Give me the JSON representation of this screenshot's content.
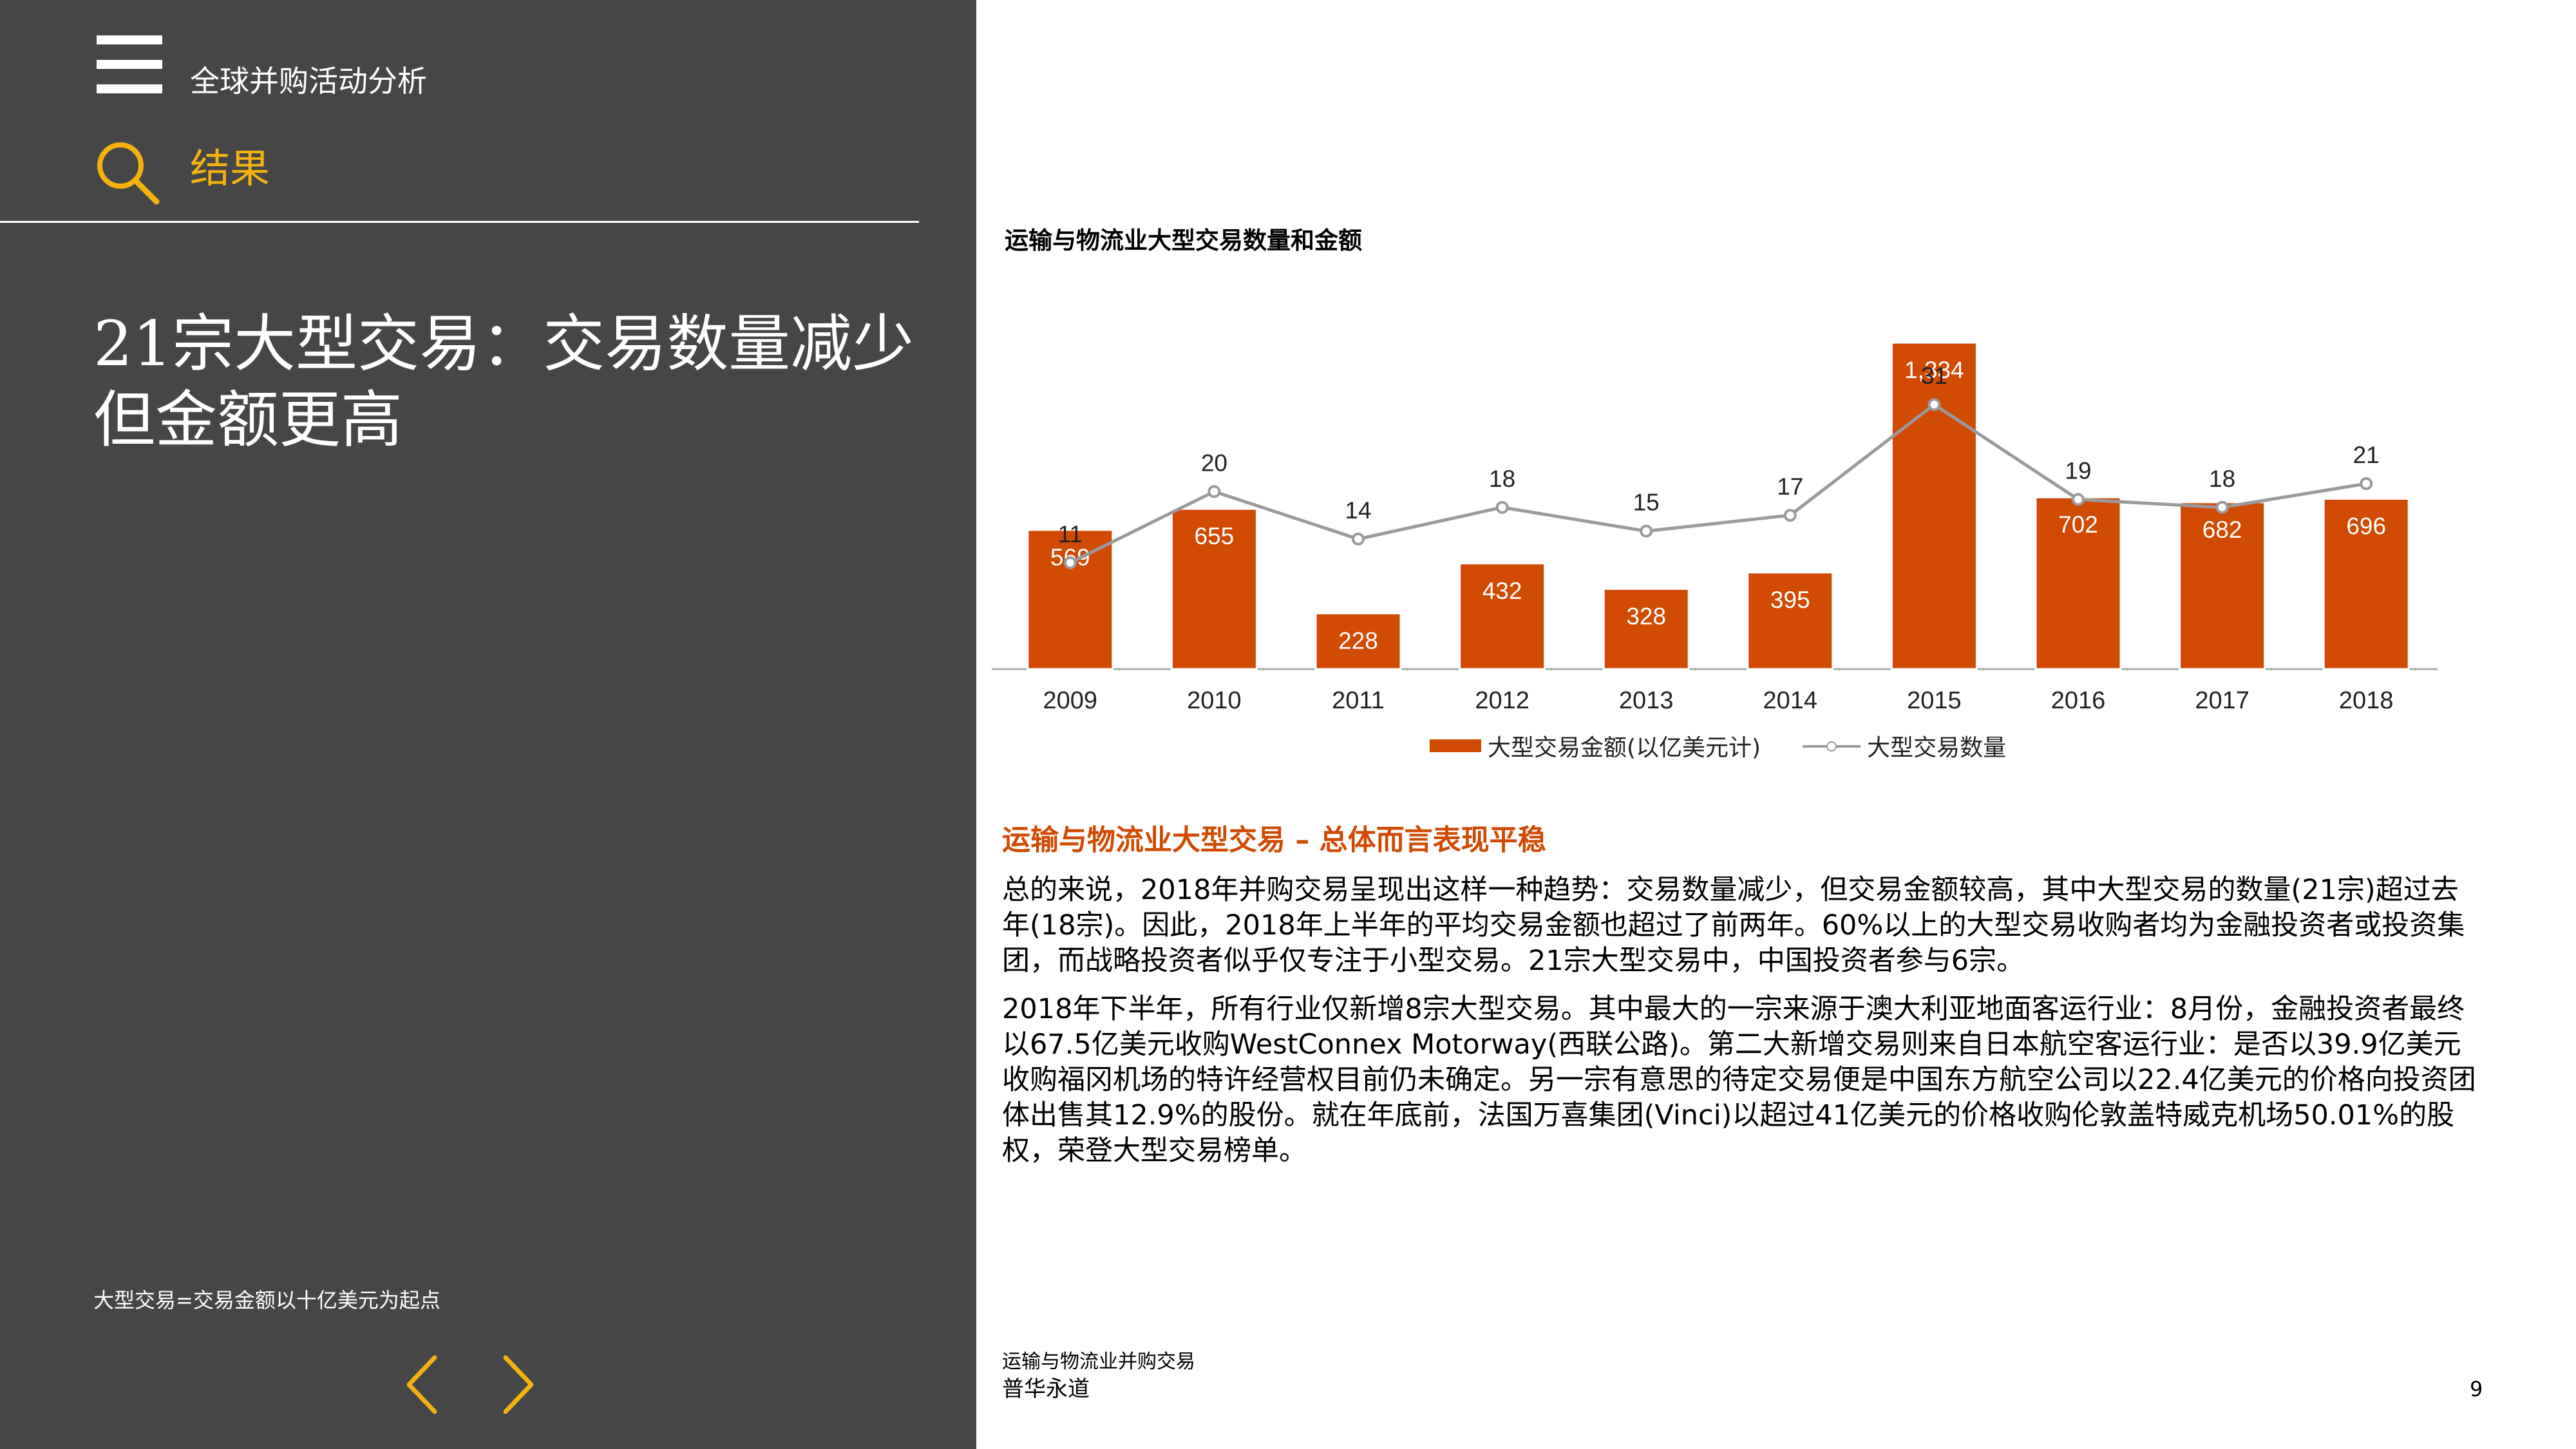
{
  "header": {
    "app_title": "全球并购活动分析",
    "section": "结果"
  },
  "headline": "21宗大型交易：交易数量减少但金额更高",
  "footnote": "大型交易=交易金额以十亿美元为起点",
  "colors": {
    "panel_bg": "#464646",
    "accent_yellow": "#f5b20f",
    "bar_orange": "#d04a02",
    "line_gray": "#9a9a9a"
  },
  "icons": {
    "menu": "hamburger-menu-icon",
    "search": "search-icon",
    "prev": "chevron-left-icon",
    "next": "chevron-right-icon"
  },
  "chart": {
    "title": "运输与物流业大型交易数量和金额",
    "legend_value": "大型交易金额(以亿美元计)",
    "legend_count": "大型交易数量"
  },
  "chart_data": {
    "type": "bar",
    "title": "运输与物流业大型交易数量和金额",
    "categories": [
      "2009",
      "2010",
      "2011",
      "2012",
      "2013",
      "2014",
      "2015",
      "2016",
      "2017",
      "2018"
    ],
    "series": [
      {
        "name": "大型交易金额(以亿美元计)",
        "type": "bar",
        "values": [
          569,
          655,
          228,
          432,
          328,
          395,
          1334,
          702,
          682,
          696
        ],
        "labels": [
          "569",
          "655",
          "228",
          "432",
          "328",
          "395",
          "1,334",
          "702",
          "682",
          "696"
        ]
      },
      {
        "name": "大型交易数量",
        "type": "line",
        "values": [
          11,
          20,
          14,
          18,
          15,
          17,
          31,
          19,
          18,
          21
        ]
      }
    ],
    "ylim_left": [
      0,
      1500
    ],
    "ylim_right": [
      0,
      35
    ],
    "grid": false,
    "legend_position": "bottom"
  },
  "body": {
    "subheading": "运输与物流业大型交易 – 总体而言表现平稳",
    "paragraph1": "总的来说，2018年并购交易呈现出这样一种趋势：交易数量减少，但交易金额较高，其中大型交易的数量(21宗)超过去年(18宗)。因此，2018年上半年的平均交易金额也超过了前两年。60%以上的大型交易收购者均为金融投资者或投资集团，而战略投资者似乎仅专注于小型交易。21宗大型交易中，中国投资者参与6宗。",
    "paragraph2": "2018年下半年，所有行业仅新增8宗大型交易。其中最大的一宗来源于澳大利亚地面客运行业：8月份，金融投资者最终以67.5亿美元收购WestConnex Motorway(西联公路)。第二大新增交易则来自日本航空客运行业：是否以39.9亿美元收购福冈机场的特许经营权目前仍未确定。另一宗有意思的待定交易便是中国东方航空公司以22.4亿美元的价格向投资团体出售其12.9%的股份。就在年底前，法国万喜集团(Vinci)以超过41亿美元的价格收购伦敦盖特威克机场50.01%的股权，荣登大型交易榜单。"
  },
  "footer": {
    "doc_title": "运输与物流业并购交易",
    "company": "普华永道",
    "page_number": "9"
  }
}
